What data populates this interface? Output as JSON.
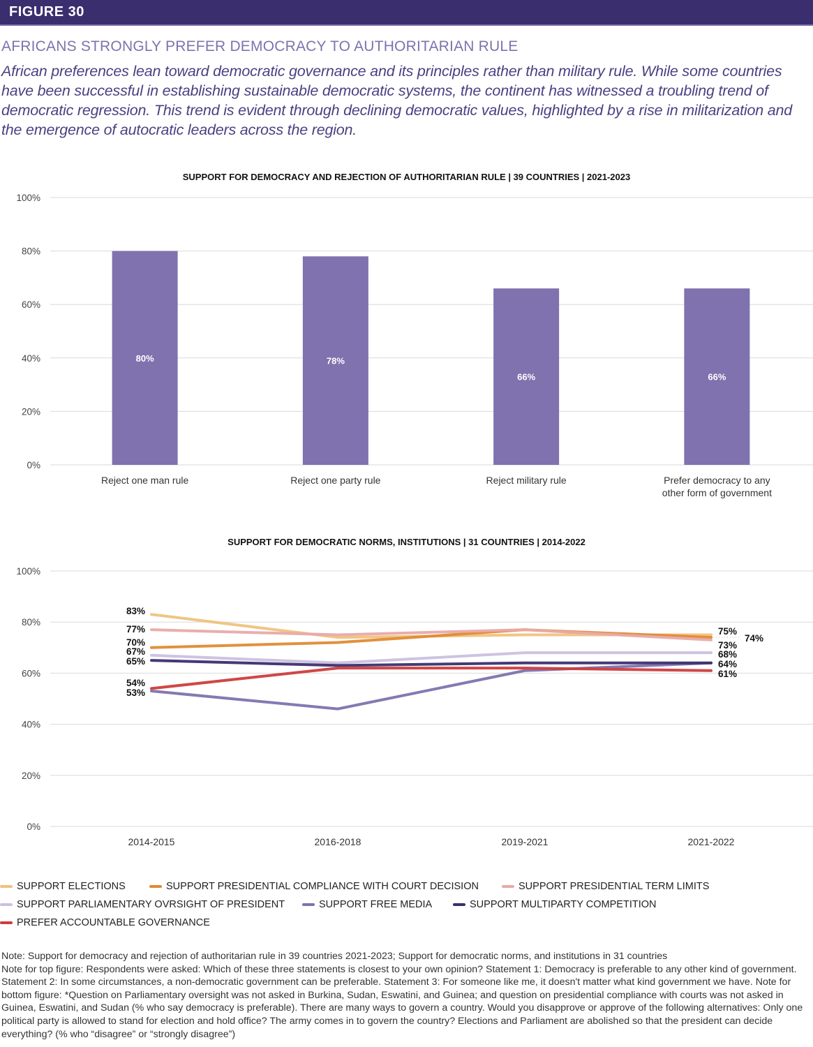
{
  "figure_label": "FIGURE 30",
  "headline": "AFRICANS STRONGLY PREFER DEMOCRACY TO AUTHORITARIAN RULE",
  "lede": "African preferences lean toward democratic governance and its principles rather than military rule. While some countries have been successful in establishing sustainable democratic systems, the continent has witnessed a troubling trend of democratic regression. This trend is evident through declining democratic values, highlighted by a rise in militarization and the emergence of autocratic leaders across the region.",
  "colors": {
    "header_bg": "#3b2e6f",
    "headline": "#7f72ae",
    "bar": "#7f72ae",
    "grid": "#d9d9d9"
  },
  "chart_data": [
    {
      "type": "bar",
      "title": "SUPPORT FOR DEMOCRACY AND REJECTION OF AUTHORITARIAN RULE | 39 COUNTRIES | 2021-2023",
      "categories": [
        "Reject one man rule",
        "Reject one party rule",
        "Reject military rule",
        "Prefer democracy to any other form of government"
      ],
      "values": [
        80,
        78,
        66,
        66
      ],
      "data_labels": [
        "80%",
        "78%",
        "66%",
        "66%"
      ],
      "yticks": [
        "0%",
        "20%",
        "40%",
        "60%",
        "80%",
        "100%"
      ],
      "ylim": [
        0,
        100
      ],
      "xlabel": "",
      "ylabel": "",
      "grid": true
    },
    {
      "type": "line",
      "title": "SUPPORT FOR DEMOCRATIC NORMS, INSTITUTIONS | 31 COUNTRIES | 2014-2022",
      "x": [
        "2014-2015",
        "2016-2018",
        "2019-2021",
        "2021-2022"
      ],
      "yticks": [
        "0%",
        "20%",
        "40%",
        "60%",
        "80%",
        "100%"
      ],
      "ylim": [
        0,
        100
      ],
      "grid": true,
      "legend_position": "bottom",
      "series": [
        {
          "name": "SUPPORT ELECTIONS",
          "color": "#f0c27d",
          "values": [
            83,
            74,
            75,
            75
          ]
        },
        {
          "name": "SUPPORT PRESIDENTIAL COMPLIANCE WITH COURT DECISION",
          "color": "#e08a34",
          "values": [
            70,
            72,
            77,
            74
          ]
        },
        {
          "name": "SUPPORT PRESIDENTIAL TERM LIMITS",
          "color": "#e8aaa9",
          "values": [
            77,
            75,
            77,
            73
          ]
        },
        {
          "name": "SUPPORT PARLIAMENTARY OVRSIGHT OF PRESIDENT",
          "color": "#cbc0e0",
          "values": [
            67,
            64,
            68,
            68
          ]
        },
        {
          "name": "SUPPORT FREE MEDIA",
          "color": "#7f72ae",
          "values": [
            53,
            46,
            61,
            64
          ]
        },
        {
          "name": "SUPPORT MULTIPARTY COMPETITION",
          "color": "#3b2e6f",
          "values": [
            65,
            63,
            64,
            64
          ]
        },
        {
          "name": "PREFER ACCOUNTABLE GOVERNANCE",
          "color": "#cc3d3d",
          "values": [
            54,
            62,
            62,
            61
          ]
        }
      ],
      "start_labels": [
        "83%",
        "77%",
        "70%",
        "67%",
        "65%",
        "54%",
        "53%"
      ],
      "end_labels": [
        "75%",
        "74%",
        "73%",
        "68%",
        "64%",
        "61%"
      ]
    }
  ],
  "notes": [
    "Note: Support for democracy and rejection of authoritarian rule in 39 countries 2021-2023;  Support for democratic norms, and institutions in 31 countries",
    "Note for top figure: Respondents were asked:  Which of these three statements is closest to your own opinion? Statement 1: Democracy is preferable to any other kind of government. Statement 2: In some circumstances, a non-democratic government can be preferable. Statement 3: For someone like me, it doesn't matter what kind government we have. Note for bottom figure: *Question on Parliamentary oversight was not asked in Burkina, Sudan, Eswatini, and Guinea; and question on presidential compliance with courts was not asked in Guinea, Eswatini, and Sudan (% who say democracy is preferable). There are many ways to govern a country. Would you disapprove or approve of the following alternatives: Only one political party is allowed to stand for election and hold office? The army comes in to govern the country? Elections and Parliament are abolished so that the president can decide everything? (% who “disagree” or “strongly disagree”)"
  ]
}
